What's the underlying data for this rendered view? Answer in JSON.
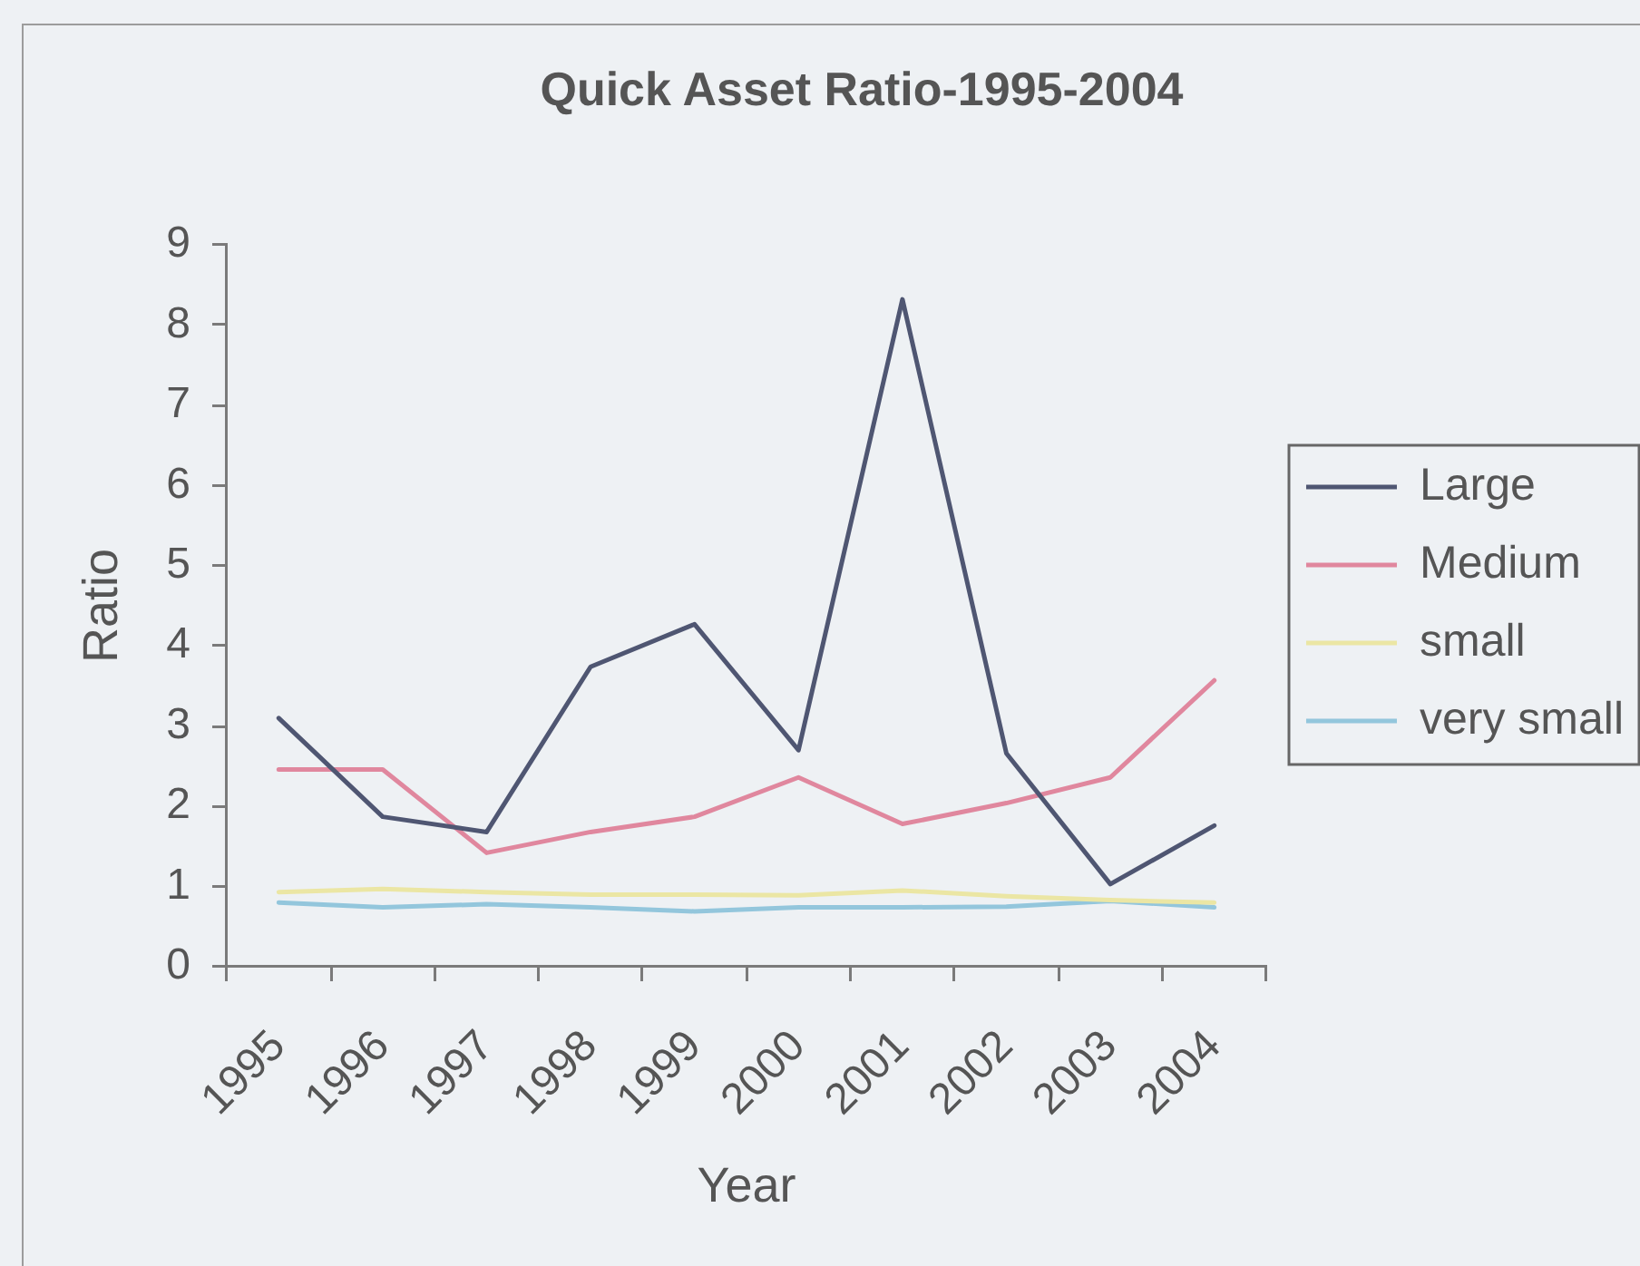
{
  "chart_data": {
    "type": "line",
    "title": "Quick Asset Ratio-1995-2004",
    "xlabel": "Year",
    "ylabel": "Ratio",
    "categories": [
      "1995",
      "1996",
      "1997",
      "1998",
      "1999",
      "2000",
      "2001",
      "2002",
      "2003",
      "2004"
    ],
    "series": [
      {
        "name": "Large",
        "color": "#4f5672",
        "values": [
          3.1,
          1.87,
          1.68,
          3.74,
          4.27,
          2.7,
          8.32,
          2.66,
          1.03,
          1.76
        ]
      },
      {
        "name": "Medium",
        "color": "#e0879e",
        "values": [
          2.46,
          2.46,
          1.42,
          1.68,
          1.87,
          2.36,
          1.78,
          2.04,
          2.36,
          3.57
        ]
      },
      {
        "name": "small",
        "color": "#ebe6a4",
        "values": [
          0.93,
          0.97,
          0.93,
          0.9,
          0.9,
          0.89,
          0.95,
          0.88,
          0.83,
          0.8
        ]
      },
      {
        "name": "very small",
        "color": "#93c6dc",
        "values": [
          0.8,
          0.74,
          0.78,
          0.74,
          0.69,
          0.74,
          0.74,
          0.75,
          0.82,
          0.74
        ]
      }
    ],
    "ylim": [
      0,
      9
    ],
    "yticks": [
      0,
      1,
      2,
      3,
      4,
      5,
      6,
      7,
      8,
      9
    ],
    "grid": false,
    "legend": "right",
    "marker": "none"
  }
}
